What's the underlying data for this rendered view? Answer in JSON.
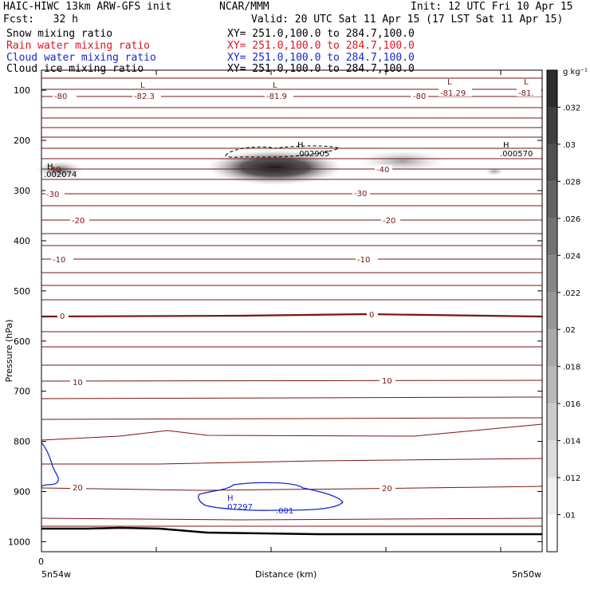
{
  "header": {
    "title_left": "HAIC-HIWC 13km ARW-GFS init",
    "title_center": "NCAR/MMM",
    "init": "Init: 12 UTC Fri 10 Apr 15",
    "fcst": "Fcst:   32 h",
    "valid": "Valid: 20 UTC Sat 11 Apr 15 (17 LST Sat 11 Apr 15)"
  },
  "fields": [
    {
      "name": "Snow mixing ratio",
      "xy": "XY= 251.0,100.0 to 284.7,100.0",
      "color": "#000000"
    },
    {
      "name": "Rain water mixing ratio",
      "xy": "XY= 251.0,100.0 to 284.7,100.0",
      "color": "#e0141e"
    },
    {
      "name": "Cloud water mixing ratio",
      "xy": "XY= 251.0,100.0 to 284.7,100.0",
      "color": "#1428d2"
    },
    {
      "name": "Cloud ice mixing ratio",
      "xy": "XY= 251.0,100.0 to 284.7,100.0",
      "color": "#000000"
    }
  ],
  "chart_data": {
    "type": "heatmap",
    "ylabel": "Pressure (hPa)",
    "xlabel": "Distance (km)",
    "y_ticks": [
      100,
      200,
      300,
      400,
      500,
      600,
      700,
      800,
      900,
      1000
    ],
    "ylim": [
      1020,
      60
    ],
    "x_tick_first": "0",
    "x_end_left": "5n54w",
    "x_end_right": "5n50w",
    "colorbar": {
      "unit": "g kg⁻¹",
      "ticks": [
        ".01",
        ".012",
        ".014",
        ".016",
        ".018",
        ".02",
        ".022",
        ".024",
        ".026",
        ".028",
        ".03",
        ".032"
      ]
    },
    "temperature_labels": [
      "-82.3",
      "-81.9",
      "-81.29",
      "-81.",
      "-80",
      "-40",
      "-30",
      "-20",
      "-10",
      "0",
      "10",
      "20"
    ],
    "extrema": [
      {
        "kind": "L",
        "value": "-82.3"
      },
      {
        "kind": "L",
        "value": "-81.9"
      },
      {
        "kind": "L",
        "value": "-81.29"
      },
      {
        "kind": "L",
        "value": "-81."
      },
      {
        "kind": "H",
        "value": ".002074"
      },
      {
        "kind": "H",
        "value": ".002905"
      },
      {
        "kind": "H",
        "value": ".000570"
      },
      {
        "kind": "H",
        "value": ".07297"
      }
    ],
    "cloud_water_label": ".001"
  },
  "colors": {
    "temperature": "#7a1414",
    "cloud_water": "#1428d2",
    "rain": "#e0141e",
    "terrain": "#000000"
  }
}
